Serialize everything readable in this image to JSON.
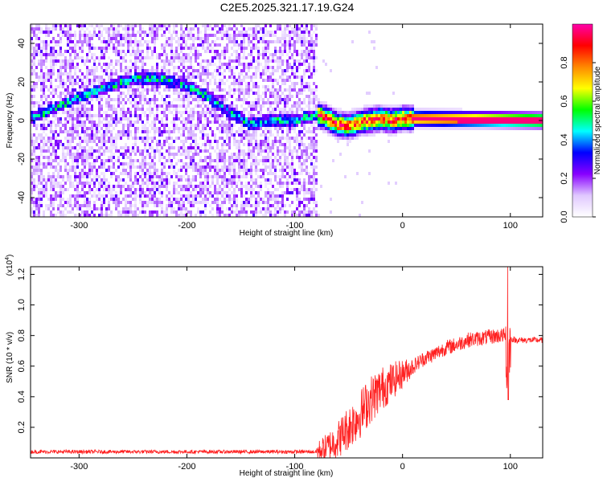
{
  "title": "C2E5.2025.321.17.19.G24",
  "chart_data": [
    {
      "type": "heatmap",
      "name": "spectrogram",
      "xlabel": "Height of straight line (km)",
      "ylabel": "Frequency (Hz)",
      "xlim": [
        -345,
        130
      ],
      "ylim": [
        -50,
        50
      ],
      "xticks": [
        -300,
        -200,
        -100,
        0,
        100
      ],
      "yticks": [
        -40,
        -20,
        0,
        20,
        40
      ],
      "noise_region_x": [
        -345,
        -78
      ],
      "signal_track": {
        "x": [
          -345,
          -320,
          -300,
          -280,
          -260,
          -240,
          -230,
          -220,
          -200,
          -180,
          -160,
          -140,
          -120,
          -100,
          -85,
          -78,
          -70,
          -60,
          -50,
          -40,
          -30,
          -20,
          -10,
          0,
          10,
          130
        ],
        "y": [
          1,
          7,
          12,
          16,
          20,
          22,
          22,
          21,
          18,
          12,
          4,
          -2,
          0,
          0,
          2,
          3,
          1,
          -2,
          -3,
          -1,
          0,
          1,
          0,
          1,
          1,
          0
        ]
      },
      "colorbar": {
        "label": "Normalized spectral amplitude",
        "range": [
          0,
          1
        ],
        "ticks": [
          "0.0",
          "0.2",
          "0.4",
          "0.6",
          "0.8"
        ],
        "tick_values": [
          0.0,
          0.2,
          0.4,
          0.6,
          0.8
        ],
        "colors": [
          "#ffffff",
          "#e0c8ff",
          "#8800ff",
          "#0000ff",
          "#00ffff",
          "#00ff00",
          "#ffff00",
          "#ff8800",
          "#ff0000",
          "#ff00aa"
        ]
      }
    },
    {
      "type": "line",
      "name": "snr",
      "xlabel": "Height of straight line (km)",
      "ylabel": "SNR (10 * v/v)",
      "scale_label": "(x10",
      "scale_exp": "4",
      "scale_close": ")",
      "xlim": [
        -345,
        130
      ],
      "ylim": [
        0,
        1.25
      ],
      "xticks": [
        -300,
        -200,
        -100,
        0,
        100
      ],
      "yticks": [
        "0.2",
        "0.4",
        "0.6",
        "0.8",
        "1.0",
        "1.2"
      ],
      "ytick_values": [
        0.2,
        0.4,
        0.6,
        0.8,
        1.0,
        1.2
      ],
      "line_color": "#ff2020",
      "trend": {
        "x": [
          -345,
          -80,
          -70,
          -60,
          -50,
          -40,
          -30,
          -20,
          -10,
          0,
          10,
          20,
          30,
          40,
          50,
          60,
          70,
          80,
          90,
          95,
          97,
          100,
          105,
          130
        ],
        "y": [
          0.04,
          0.04,
          0.07,
          0.12,
          0.2,
          0.28,
          0.38,
          0.45,
          0.5,
          0.55,
          0.6,
          0.65,
          0.68,
          0.72,
          0.74,
          0.77,
          0.78,
          0.79,
          0.8,
          0.8,
          0.6,
          0.78,
          0.77,
          0.77
        ]
      },
      "spike": {
        "x": 98,
        "y": 1.25,
        "low": 0.38
      }
    }
  ]
}
